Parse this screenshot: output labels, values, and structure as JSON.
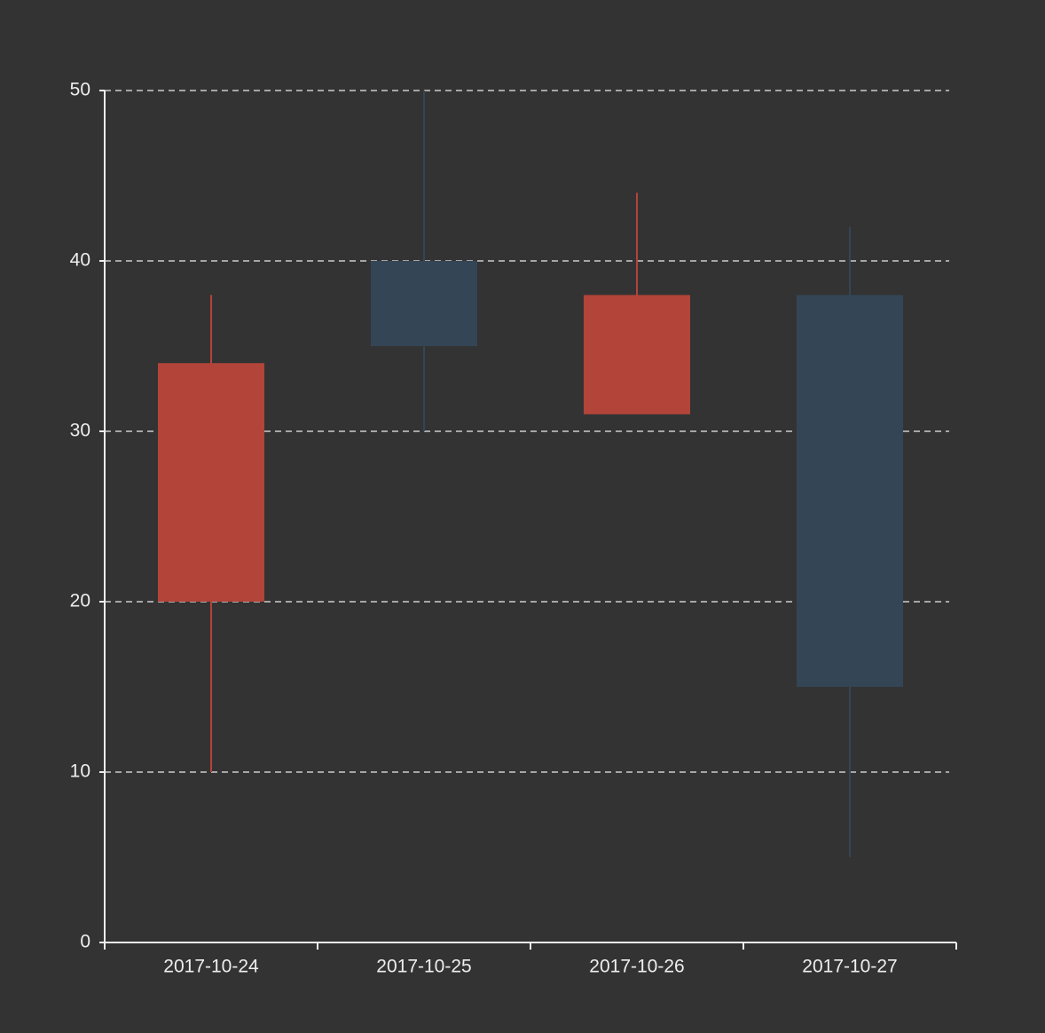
{
  "chart_data": {
    "type": "candlestick",
    "categories": [
      "2017-10-24",
      "2017-10-25",
      "2017-10-26",
      "2017-10-27"
    ],
    "open": [
      20,
      40,
      31,
      38
    ],
    "close": [
      34,
      35,
      38,
      15
    ],
    "low": [
      10,
      30,
      31,
      5
    ],
    "high": [
      38,
      50,
      44,
      42
    ],
    "up_color": "#b3443a",
    "down_color": "#344556",
    "ylim": [
      0,
      50
    ],
    "yticks": [
      0,
      10,
      20,
      30,
      40,
      50
    ],
    "grid": true
  }
}
